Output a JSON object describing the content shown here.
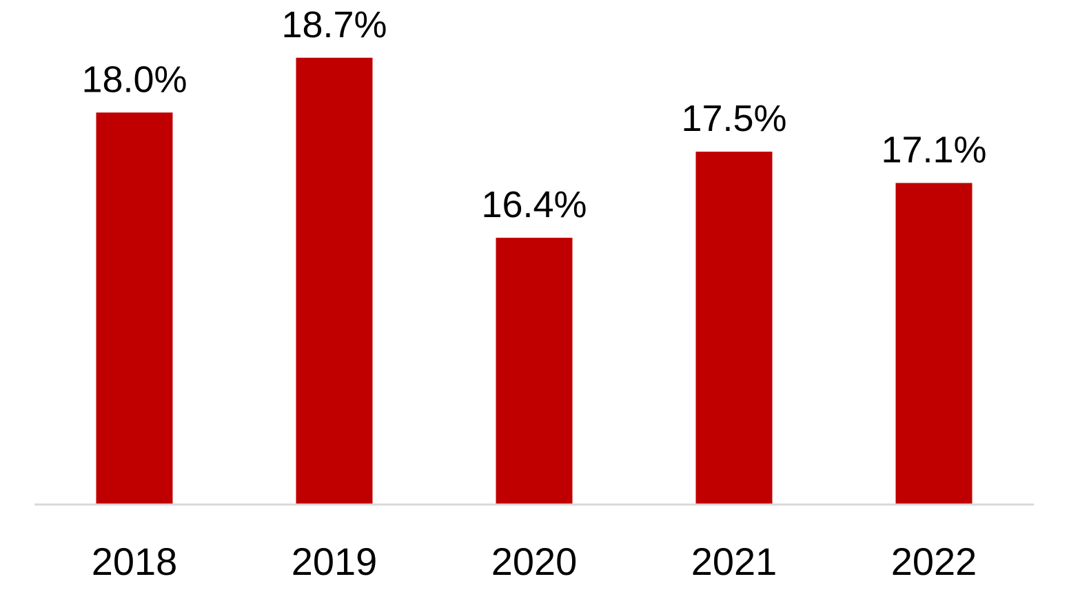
{
  "chart_data": {
    "type": "bar",
    "categories": [
      "2018",
      "2019",
      "2020",
      "2021",
      "2022"
    ],
    "series": [
      {
        "values": [
          18.0,
          18.7,
          16.4,
          17.5,
          17.1
        ],
        "labels": [
          "18.0%",
          "18.7%",
          "16.4%",
          "17.5%",
          "17.1%"
        ]
      }
    ],
    "title": "",
    "xlabel": "",
    "ylabel": "",
    "ylim": [
      13.0,
      19.2
    ],
    "grid": false,
    "legend": "none",
    "colors": {
      "bar": "#C00000",
      "axis": "#D9D9D9",
      "text": "#000000"
    }
  }
}
